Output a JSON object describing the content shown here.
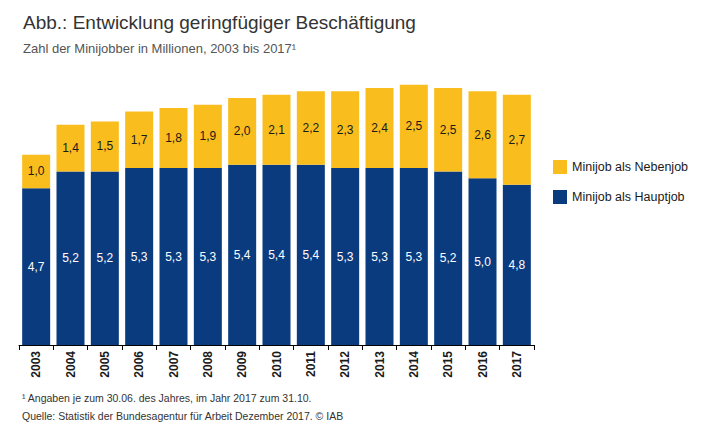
{
  "chart_data": {
    "type": "bar",
    "title": "Abb.: Entwicklung geringfügiger Beschäftigung",
    "subtitle": "Zahl der Minijobber in Millionen, 2003 bis 2017¹",
    "annotations": [
      "¹ Angaben je zum 30.06. des Jahres, im Jahr 2017 zum 31.10.",
      "Quelle: Statistik der Bundesagentur für Arbeit Dezember 2017. © IAB"
    ],
    "categories": [
      "2003",
      "2004",
      "2005",
      "2006",
      "2007",
      "2008",
      "2009",
      "2010",
      "2011",
      "2012",
      "2013",
      "2014",
      "2015",
      "2016",
      "2017"
    ],
    "series": [
      {
        "name": "Minijob als Hauptjob",
        "color": "#0b3b7f",
        "values": [
          4.7,
          5.2,
          5.2,
          5.3,
          5.3,
          5.3,
          5.4,
          5.4,
          5.4,
          5.3,
          5.3,
          5.3,
          5.2,
          5.0,
          4.8
        ],
        "value_labels": [
          "4,7",
          "5,2",
          "5,2",
          "5,3",
          "5,3",
          "5,3",
          "5,4",
          "5,4",
          "5,4",
          "5,3",
          "5,3",
          "5,3",
          "5,2",
          "5,0",
          "4,8"
        ]
      },
      {
        "name": "Minijob als Nebenjob",
        "color": "#f9bd1e",
        "values": [
          1.0,
          1.4,
          1.5,
          1.7,
          1.8,
          1.9,
          2.0,
          2.1,
          2.2,
          2.3,
          2.4,
          2.5,
          2.5,
          2.6,
          2.7
        ],
        "value_labels": [
          "1,0",
          "1,4",
          "1,5",
          "1,7",
          "1,8",
          "1,9",
          "2,0",
          "2,1",
          "2,2",
          "2,3",
          "2,4",
          "2,5",
          "2,5",
          "2,6",
          "2,7"
        ]
      }
    ],
    "ylim": [
      0,
      8
    ],
    "stacked": true,
    "data_labels": true,
    "tick_labels": "x",
    "grid": false,
    "legend": "right"
  }
}
